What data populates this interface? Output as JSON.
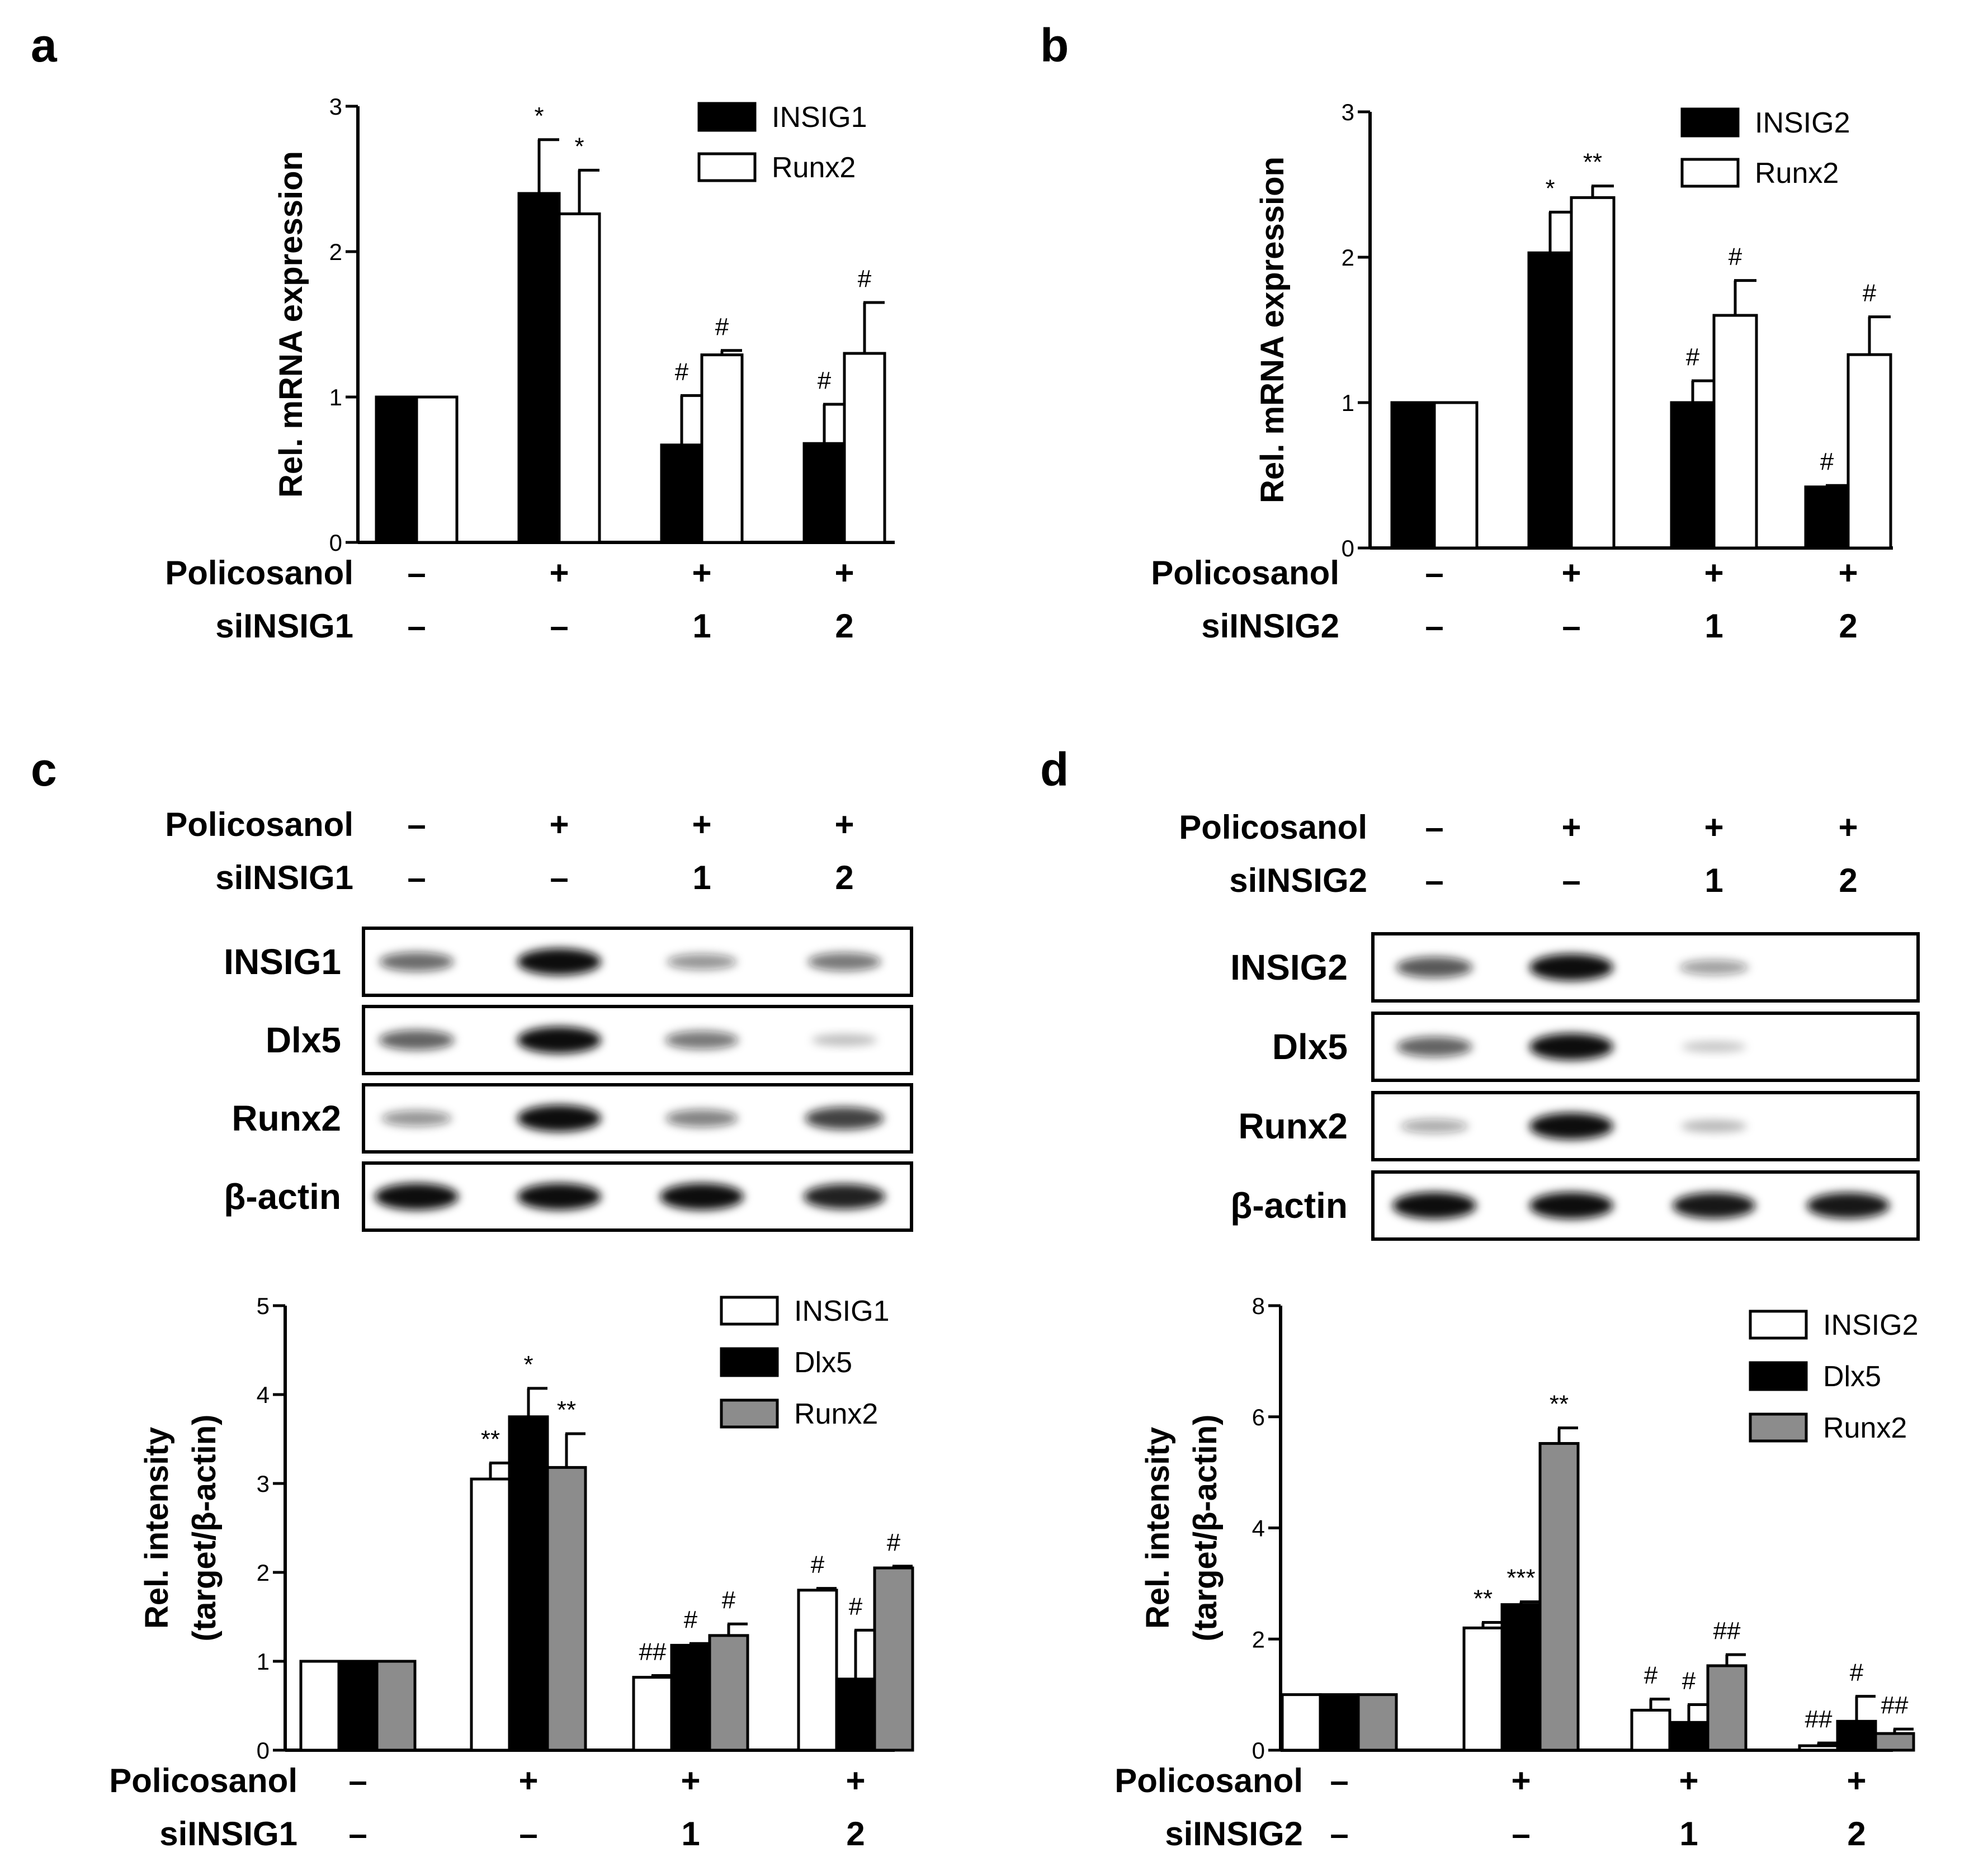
{
  "colors": {
    "black": "#000000",
    "white": "#ffffff",
    "gray": "#8c8c8c",
    "band": "#111111"
  },
  "chart_data": [
    {
      "panel": "a",
      "type": "bar",
      "ylabel": "Rel. mRNA expression",
      "ylim": [
        0,
        3
      ],
      "yticks": [
        "0",
        "1",
        "2",
        "3"
      ],
      "legend_position": "top-right",
      "conditions": [
        {
          "label": "Policosanol",
          "symbols": [
            "-",
            "+",
            "+",
            "+"
          ]
        },
        {
          "label": "siINSIG1",
          "symbols": [
            "-",
            "-",
            "1",
            "2"
          ]
        }
      ],
      "series": [
        {
          "name": "INSIG1",
          "fill": "black",
          "values": [
            1.0,
            2.4,
            0.67,
            0.68
          ],
          "errors": [
            0,
            0.37,
            0.34,
            0.27
          ],
          "sig": [
            "",
            "*",
            "#",
            "#"
          ]
        },
        {
          "name": "Runx2",
          "fill": "white",
          "values": [
            1.0,
            2.26,
            1.29,
            1.3
          ],
          "errors": [
            0,
            0.3,
            0.03,
            0.35
          ],
          "sig": [
            "",
            "*",
            "#",
            "#"
          ]
        }
      ]
    },
    {
      "panel": "b",
      "type": "bar",
      "ylabel": "Rel. mRNA expression",
      "ylim": [
        0,
        3
      ],
      "yticks": [
        "0",
        "1",
        "2",
        "3"
      ],
      "legend_position": "top-right",
      "conditions": [
        {
          "label": "Policosanol",
          "symbols": [
            "-",
            "+",
            "+",
            "+"
          ]
        },
        {
          "label": "siINSIG2",
          "symbols": [
            "-",
            "-",
            "1",
            "2"
          ]
        }
      ],
      "series": [
        {
          "name": "INSIG2",
          "fill": "black",
          "values": [
            1.0,
            2.03,
            1.0,
            0.42
          ],
          "errors": [
            0,
            0.28,
            0.15,
            0.01
          ],
          "sig": [
            "",
            "*",
            "#",
            "#"
          ]
        },
        {
          "name": "Runx2",
          "fill": "white",
          "values": [
            1.0,
            2.41,
            1.6,
            1.33
          ],
          "errors": [
            0,
            0.08,
            0.24,
            0.26
          ],
          "sig": [
            "",
            "**",
            "#",
            "#"
          ]
        }
      ]
    },
    {
      "panel": "c",
      "type": "bar",
      "ylabel": [
        "Rel. intensity",
        "(target/β-actin)"
      ],
      "ylim": [
        0,
        5
      ],
      "yticks": [
        "0",
        "1",
        "2",
        "3",
        "4",
        "5"
      ],
      "legend_position": "top-right",
      "conditions": [
        {
          "label": "Policosanol",
          "symbols": [
            "-",
            "+",
            "+",
            "+"
          ]
        },
        {
          "label": "siINSIG1",
          "symbols": [
            "-",
            "-",
            "1",
            "2"
          ]
        }
      ],
      "series": [
        {
          "name": "INSIG1",
          "fill": "white",
          "values": [
            1.0,
            3.05,
            0.82,
            1.8
          ],
          "errors": [
            0,
            0.18,
            0.02,
            0.02
          ],
          "sig": [
            "",
            "**",
            "##",
            "#"
          ]
        },
        {
          "name": "Dlx5",
          "fill": "black",
          "values": [
            1.0,
            3.75,
            1.18,
            0.8
          ],
          "errors": [
            0,
            0.32,
            0.02,
            0.55
          ],
          "sig": [
            "",
            "*",
            "#",
            "#"
          ]
        },
        {
          "name": "Runx2",
          "fill": "gray",
          "values": [
            1.0,
            3.18,
            1.29,
            2.05
          ],
          "errors": [
            0,
            0.38,
            0.13,
            0.02
          ],
          "sig": [
            "",
            "**",
            "#",
            "#"
          ]
        }
      ]
    },
    {
      "panel": "d",
      "type": "bar",
      "ylabel": [
        "Rel. intensity",
        "(target/β-actin)"
      ],
      "ylim": [
        0,
        8
      ],
      "yticks": [
        "0",
        "2",
        "4",
        "6",
        "8"
      ],
      "legend_position": "top-right",
      "conditions": [
        {
          "label": "Policosanol",
          "symbols": [
            "-",
            "+",
            "+",
            "+"
          ]
        },
        {
          "label": "siINSIG2",
          "symbols": [
            "-",
            "-",
            "1",
            "2"
          ]
        }
      ],
      "series": [
        {
          "name": "INSIG2",
          "fill": "white",
          "values": [
            1.0,
            2.2,
            0.72,
            0.08
          ],
          "errors": [
            0,
            0.1,
            0.2,
            0.05
          ],
          "sig": [
            "",
            "**",
            "#",
            "##"
          ]
        },
        {
          "name": "Dlx5",
          "fill": "black",
          "values": [
            1.0,
            2.62,
            0.5,
            0.52
          ],
          "errors": [
            0,
            0.05,
            0.32,
            0.45
          ],
          "sig": [
            "",
            "***",
            "#",
            "#"
          ]
        },
        {
          "name": "Runx2",
          "fill": "gray",
          "values": [
            1.0,
            5.52,
            1.52,
            0.3
          ],
          "errors": [
            0,
            0.28,
            0.2,
            0.08
          ],
          "sig": [
            "",
            "**",
            "##",
            "##"
          ]
        }
      ]
    }
  ],
  "blots": [
    {
      "panel": "c",
      "conditions": [
        {
          "label": "Policosanol",
          "symbols": [
            "-",
            "+",
            "+",
            "+"
          ]
        },
        {
          "label": "siINSIG1",
          "symbols": [
            "-",
            "-",
            "1",
            "2"
          ]
        }
      ],
      "rows": [
        {
          "label": "INSIG1",
          "intensities": [
            0.55,
            1.0,
            0.35,
            0.5
          ]
        },
        {
          "label": "Dlx5",
          "intensities": [
            0.6,
            1.0,
            0.5,
            0.12
          ]
        },
        {
          "label": "Runx2",
          "intensities": [
            0.35,
            1.0,
            0.45,
            0.75
          ]
        },
        {
          "label": "β-actin",
          "intensities": [
            1.0,
            1.0,
            1.0,
            0.9
          ]
        }
      ]
    },
    {
      "panel": "d",
      "conditions": [
        {
          "label": "Policosanol",
          "symbols": [
            "-",
            "+",
            "+",
            "+"
          ]
        },
        {
          "label": "siINSIG2",
          "symbols": [
            "-",
            "-",
            "1",
            "2"
          ]
        }
      ],
      "rows": [
        {
          "label": "INSIG2",
          "intensities": [
            0.65,
            1.0,
            0.3,
            0.0
          ]
        },
        {
          "label": "Dlx5",
          "intensities": [
            0.6,
            1.0,
            0.08,
            0.0
          ]
        },
        {
          "label": "Runx2",
          "intensities": [
            0.25,
            1.0,
            0.15,
            0.0
          ]
        },
        {
          "label": "β-actin",
          "intensities": [
            1.0,
            1.0,
            0.95,
            0.95
          ]
        }
      ]
    }
  ]
}
